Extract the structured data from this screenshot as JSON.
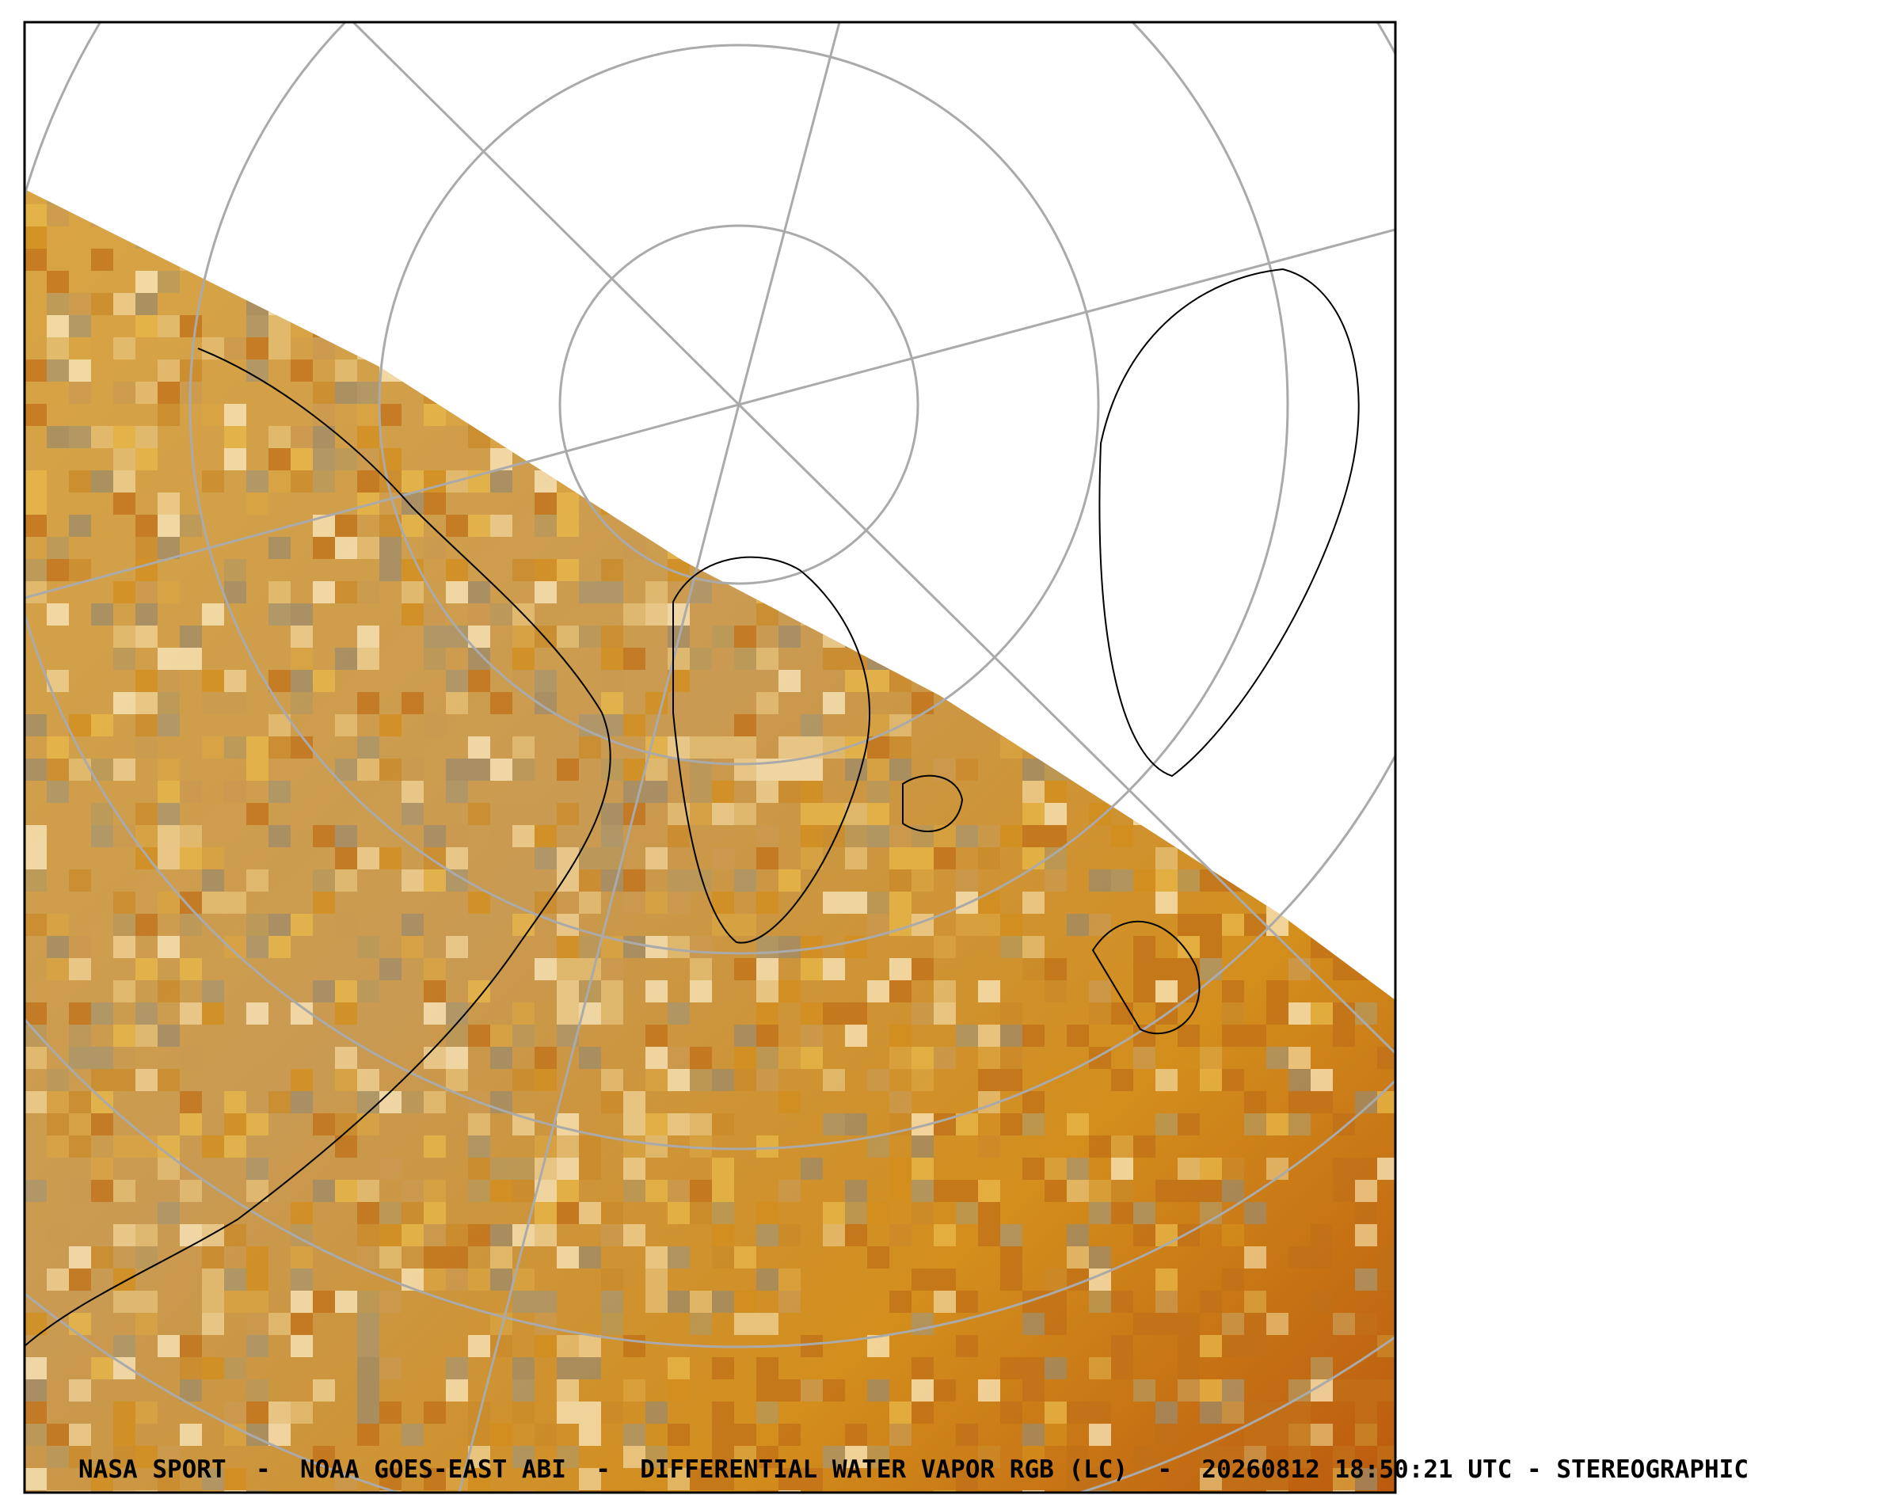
{
  "caption": "NASA SPORT  -  NOAA GOES-EAST ABI  -  DIFFERENTIAL WATER VAPOR RGB (LC)  -  20260812 18:50:21 UTC - STEREOGRAPHIC"
}
